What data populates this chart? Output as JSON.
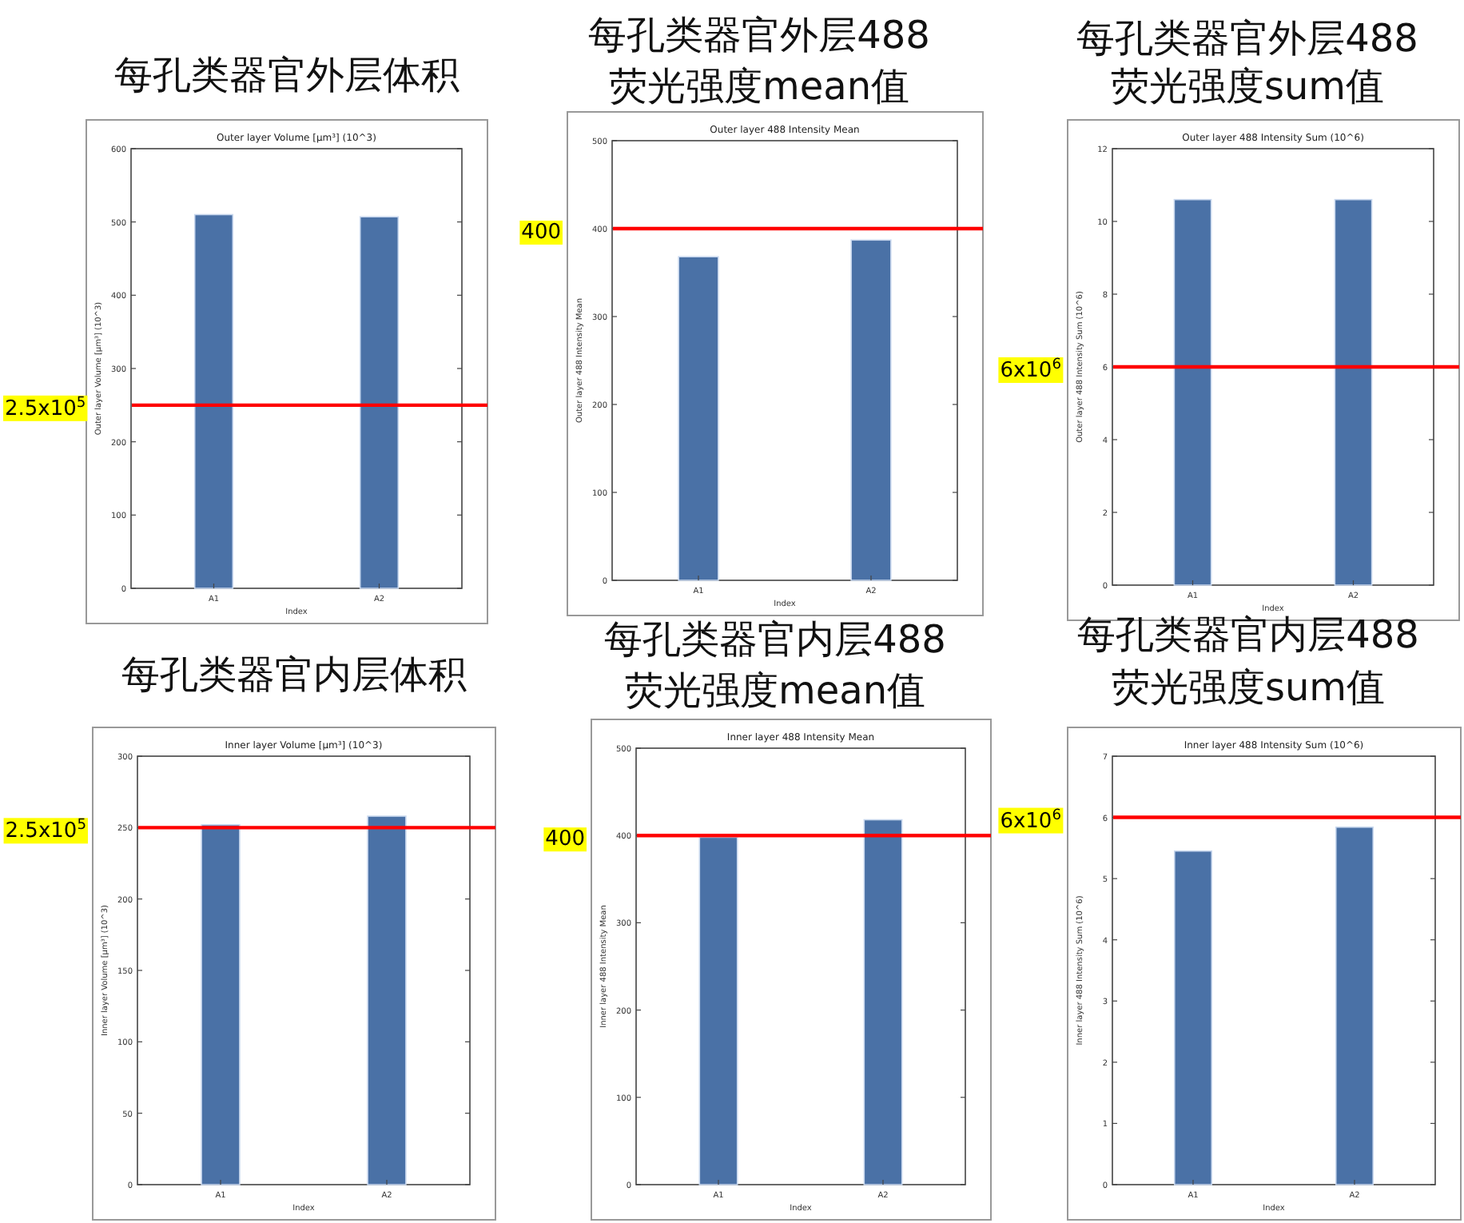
{
  "chart_data": [
    {
      "type": "bar",
      "title": "每孔类器官外层体积",
      "subtitle": "Outer layer Volume [µm³] (10^3)",
      "xlabel": "Index",
      "ylabel": "Outer layer Volume [µm³] (10^3)",
      "categories": [
        "A1",
        "A2"
      ],
      "values": [
        510,
        507
      ],
      "color": "#4a71a6",
      "ylim": [
        0,
        600
      ],
      "yticks": [
        0,
        100,
        200,
        300,
        400,
        500,
        600
      ],
      "ref_lines": [
        {
          "axis": "y",
          "value": 250,
          "label": "2.5x10$^{5}$",
          "color": "#ff0000"
        }
      ]
    },
    {
      "type": "bar",
      "title": "每孔类器官外层488\n荧光强度mean值",
      "subtitle": "Outer layer 488 Intensity Mean",
      "xlabel": "Index",
      "ylabel": "Outer layer 488 Intensity Mean",
      "categories": [
        "A1",
        "A2"
      ],
      "values": [
        368,
        387
      ],
      "color": "#4a71a6",
      "ylim": [
        0,
        500
      ],
      "yticks": [
        0,
        100,
        200,
        300,
        400,
        500
      ],
      "ref_lines": [
        {
          "axis": "y",
          "value": 400,
          "label": "400",
          "color": "#ff0000"
        }
      ]
    },
    {
      "type": "bar",
      "title": "每孔类器官外层488\n荧光强度sum值",
      "subtitle": "Outer layer 488 Intensity Sum (10^6)",
      "xlabel": "Index",
      "ylabel": "Outer layer 488 Intensity Sum (10^6)",
      "categories": [
        "A1",
        "A2"
      ],
      "values": [
        10.6,
        10.6
      ],
      "color": "#4a71a6",
      "ylim": [
        0,
        12
      ],
      "yticks": [
        0,
        2,
        4,
        6,
        8,
        10,
        12
      ],
      "ref_lines": [
        {
          "axis": "y",
          "value": 6,
          "label": "6x10$^{6}$",
          "color": "#ff0000"
        }
      ]
    },
    {
      "type": "bar",
      "title": "每孔类器官内层体积",
      "subtitle": "Inner layer Volume [µm³] (10^3)",
      "xlabel": "Index",
      "ylabel": "Inner layer Volume [µm³] (10^3)",
      "categories": [
        "A1",
        "A2"
      ],
      "values": [
        252,
        258
      ],
      "color": "#4a71a6",
      "ylim": [
        0,
        300
      ],
      "yticks": [
        0,
        50,
        100,
        150,
        200,
        250,
        300
      ],
      "ref_lines": [
        {
          "axis": "y",
          "value": 250,
          "label": "2.5x10$^{5}$",
          "color": "#ff0000"
        }
      ]
    },
    {
      "type": "bar",
      "title": "每孔类器官内层488\n荧光强度mean值",
      "subtitle": "Inner layer 488 Intensity Mean",
      "xlabel": "Index",
      "ylabel": "Inner layer 488 Intensity Mean",
      "categories": [
        "A1",
        "A2"
      ],
      "values": [
        398,
        418
      ],
      "color": "#4a71a6",
      "ylim": [
        0,
        500
      ],
      "yticks": [
        0,
        100,
        200,
        300,
        400,
        500
      ],
      "ref_lines": [
        {
          "axis": "y",
          "value": 400,
          "label": "400",
          "color": "#ff0000"
        }
      ]
    },
    {
      "type": "bar",
      "title": "每孔类器官内层488\n荧光强度sum值",
      "subtitle": "Inner layer 488 Intensity Sum (10^6)",
      "xlabel": "Index",
      "ylabel": "Inner layer 488 Intensity Sum (10^6)",
      "categories": [
        "A1",
        "A2"
      ],
      "values": [
        5.45,
        5.84
      ],
      "color": "#4a71a6",
      "ylim": [
        0,
        7
      ],
      "yticks": [
        0,
        1,
        2,
        3,
        4,
        5,
        6,
        7
      ],
      "ref_lines": [
        {
          "axis": "y",
          "value": 6,
          "label": "6x10$^{6}$",
          "color": "#ff0000"
        }
      ]
    }
  ]
}
